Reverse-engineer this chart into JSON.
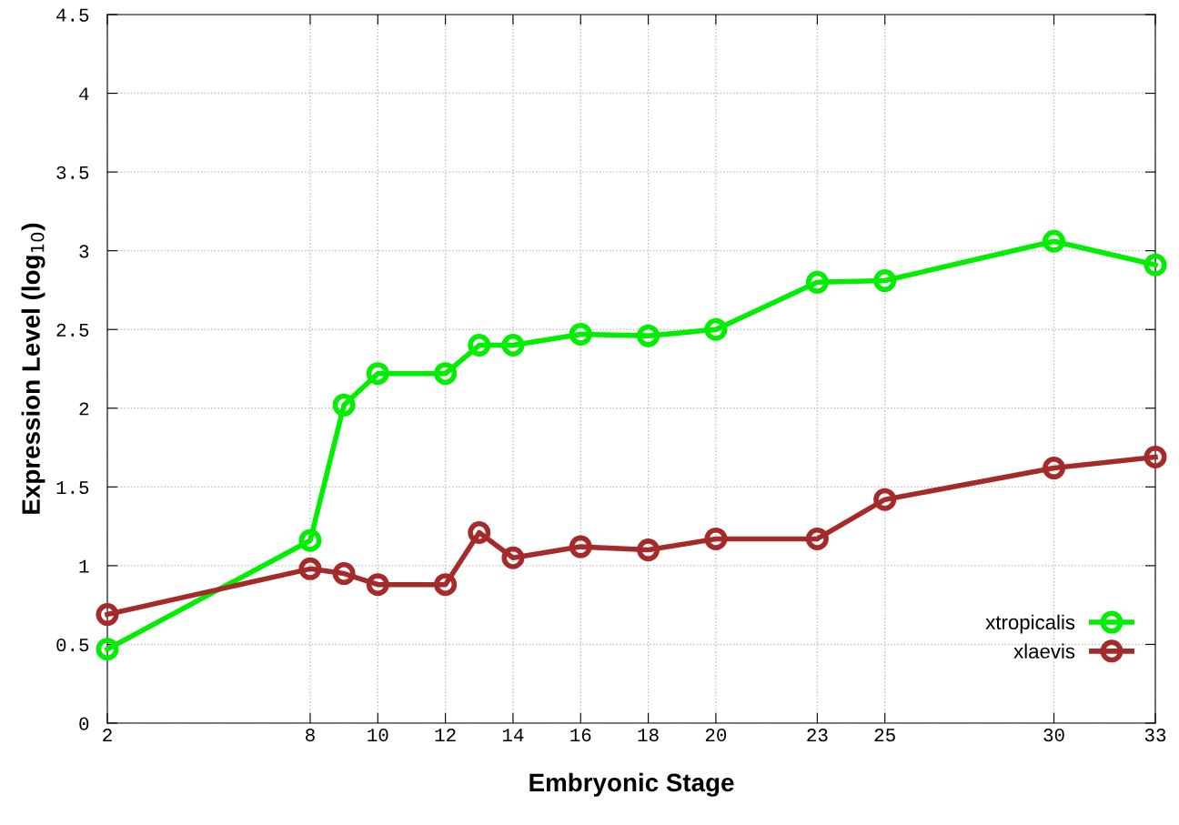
{
  "chart_data": {
    "type": "line",
    "xlabel": "Embryonic Stage",
    "ylabel": "Expression Level (log$_{10}$)",
    "x": [
      2,
      8,
      9,
      10,
      12,
      13,
      14,
      16,
      18,
      20,
      23,
      25,
      30,
      33
    ],
    "series": [
      {
        "name": "xtropicalis",
        "color": "#00ee00",
        "values": [
          0.47,
          1.16,
          2.02,
          2.22,
          2.22,
          2.4,
          2.4,
          2.47,
          2.46,
          2.5,
          2.8,
          2.81,
          3.06,
          2.91
        ]
      },
      {
        "name": "xlaevis",
        "color": "#a52a2a",
        "values": [
          0.69,
          0.98,
          0.95,
          0.88,
          0.88,
          1.21,
          1.05,
          1.12,
          1.1,
          1.17,
          1.17,
          1.42,
          1.62,
          1.69
        ]
      }
    ],
    "xlim": [
      2,
      33
    ],
    "xticks": [
      2,
      8,
      10,
      12,
      14,
      16,
      18,
      20,
      23,
      25,
      30,
      33
    ],
    "ylim": [
      0,
      4.5
    ],
    "yticks": [
      0,
      0.5,
      1,
      1.5,
      2,
      2.5,
      3,
      3.5,
      4,
      4.5
    ],
    "grid": true,
    "legend": "bottom right",
    "marker": "circle",
    "line_style": "solid"
  }
}
